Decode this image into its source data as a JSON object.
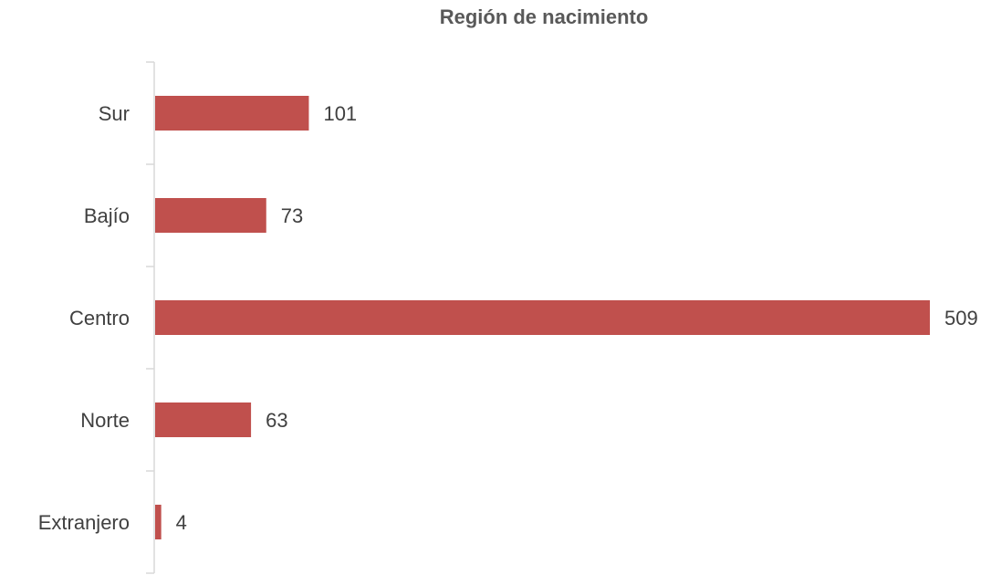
{
  "chart_data": {
    "type": "bar",
    "orientation": "horizontal",
    "title": "Región de nacimiento",
    "categories": [
      "Sur",
      "Bajío",
      "Centro",
      "Norte",
      "Extranjero"
    ],
    "values": [
      101,
      73,
      509,
      63,
      4
    ],
    "color": "#c0504d"
  }
}
